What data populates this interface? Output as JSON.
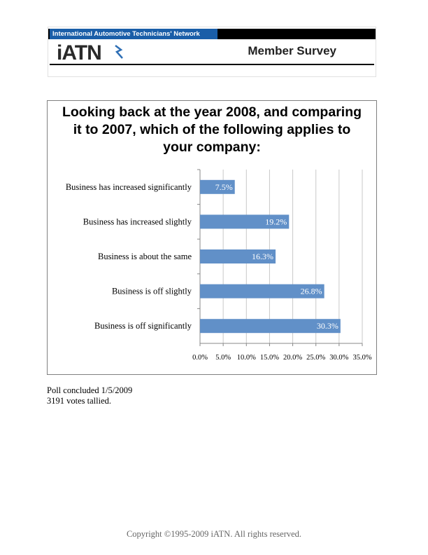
{
  "header": {
    "network_name": "International Automotive Technicians' Network",
    "logo_text": "iATN",
    "survey_title": "Member Survey"
  },
  "chart_data": {
    "type": "bar",
    "orientation": "horizontal",
    "title": "Looking back at the year 2008, and comparing it to 2007, which of the following applies to your company:",
    "categories": [
      "Business has increased significantly",
      "Business has increased slightly",
      "Business is about the same",
      "Business is off slightly",
      "Business is off significantly"
    ],
    "values": [
      7.5,
      19.2,
      16.3,
      26.8,
      30.3
    ],
    "data_labels": [
      "7.5%",
      "19.2%",
      "16.3%",
      "26.8%",
      "30.3%"
    ],
    "xlim": [
      0,
      35
    ],
    "x_ticks": [
      0,
      5,
      10,
      15,
      20,
      25,
      30,
      35
    ],
    "x_tick_labels": [
      "0.0%",
      "5.0%",
      "10.0%",
      "15.0%",
      "20.0%",
      "25.0%",
      "30.0%",
      "35.0%"
    ],
    "grid": true,
    "bar_color": "#6190c8",
    "xlabel": "",
    "ylabel": ""
  },
  "notes": {
    "poll_concluded": "Poll concluded 1/5/2009",
    "votes": "3191 votes tallied."
  },
  "copyright": "Copyright ©1995-2009 iATN. All rights reserved."
}
